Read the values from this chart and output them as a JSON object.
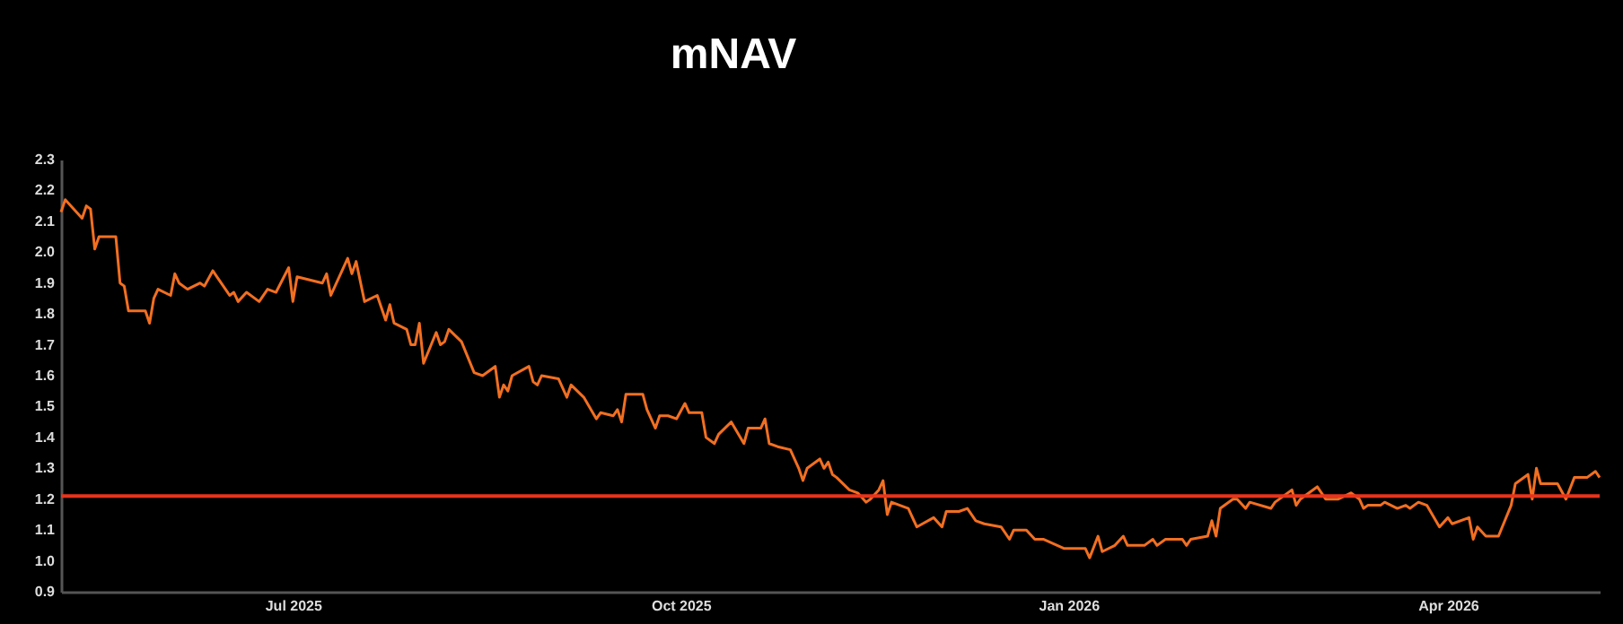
{
  "chart_data": {
    "type": "line",
    "title": "mNAV",
    "x": [
      "2025-05-07",
      "2025-05-08",
      "2025-05-12",
      "2025-05-13",
      "2025-05-14",
      "2025-05-15",
      "2025-05-16",
      "2025-05-20",
      "2025-05-21",
      "2025-05-22",
      "2025-05-23",
      "2025-05-27",
      "2025-05-28",
      "2025-05-29",
      "2025-05-30",
      "2025-06-02",
      "2025-06-03",
      "2025-06-04",
      "2025-06-06",
      "2025-06-09",
      "2025-06-10",
      "2025-06-12",
      "2025-06-13",
      "2025-06-16",
      "2025-06-17",
      "2025-06-18",
      "2025-06-20",
      "2025-06-23",
      "2025-06-25",
      "2025-06-27",
      "2025-06-30",
      "2025-07-01",
      "2025-07-02",
      "2025-07-08",
      "2025-07-09",
      "2025-07-10",
      "2025-07-14",
      "2025-07-15",
      "2025-07-16",
      "2025-07-18",
      "2025-07-21",
      "2025-07-23",
      "2025-07-24",
      "2025-07-25",
      "2025-07-28",
      "2025-07-29",
      "2025-07-30",
      "2025-07-31",
      "2025-08-01",
      "2025-08-04",
      "2025-08-05",
      "2025-08-06",
      "2025-08-07",
      "2025-08-10",
      "2025-08-13",
      "2025-08-15",
      "2025-08-18",
      "2025-08-19",
      "2025-08-20",
      "2025-08-21",
      "2025-08-22",
      "2025-08-26",
      "2025-08-27",
      "2025-08-28",
      "2025-08-29",
      "2025-09-02",
      "2025-09-04",
      "2025-09-05",
      "2025-09-08",
      "2025-09-11",
      "2025-09-12",
      "2025-09-15",
      "2025-09-16",
      "2025-09-17",
      "2025-09-18",
      "2025-09-22",
      "2025-09-23",
      "2025-09-25",
      "2025-09-26",
      "2025-09-28",
      "2025-09-30",
      "2025-10-02",
      "2025-10-03",
      "2025-10-06",
      "2025-10-07",
      "2025-10-09",
      "2025-10-10",
      "2025-10-13",
      "2025-10-16",
      "2025-10-17",
      "2025-10-20",
      "2025-10-21",
      "2025-10-22",
      "2025-10-24",
      "2025-10-27",
      "2025-10-29",
      "2025-10-30",
      "2025-10-31",
      "2025-11-03",
      "2025-11-04",
      "2025-11-05",
      "2025-11-06",
      "2025-11-07",
      "2025-11-10",
      "2025-11-12",
      "2025-11-14",
      "2025-11-15",
      "2025-11-17",
      "2025-11-18",
      "2025-11-19",
      "2025-11-20",
      "2025-11-24",
      "2025-11-26",
      "2025-11-30",
      "2025-12-02",
      "2025-12-03",
      "2025-12-06",
      "2025-12-08",
      "2025-12-10",
      "2025-12-12",
      "2025-12-16",
      "2025-12-18",
      "2025-12-19",
      "2025-12-22",
      "2025-12-24",
      "2025-12-26",
      "2025-12-31",
      "2026-01-05",
      "2026-01-06",
      "2026-01-08",
      "2026-01-09",
      "2026-01-12",
      "2026-01-14",
      "2026-01-15",
      "2026-01-19",
      "2026-01-21",
      "2026-01-22",
      "2026-01-24",
      "2026-01-28",
      "2026-01-29",
      "2026-01-30",
      "2026-02-03",
      "2026-02-04",
      "2026-02-05",
      "2026-02-06",
      "2026-02-09",
      "2026-02-10",
      "2026-02-12",
      "2026-02-13",
      "2026-02-18",
      "2026-02-19",
      "2026-02-23",
      "2026-02-24",
      "2026-02-25",
      "2026-03-01",
      "2026-03-03",
      "2026-03-06",
      "2026-03-09",
      "2026-03-11",
      "2026-03-12",
      "2026-03-13",
      "2026-03-16",
      "2026-03-17",
      "2026-03-20",
      "2026-03-22",
      "2026-03-23",
      "2026-03-25",
      "2026-03-27",
      "2026-03-30",
      "2026-04-01",
      "2026-04-02",
      "2026-04-06",
      "2026-04-07",
      "2026-04-08",
      "2026-04-10",
      "2026-04-13",
      "2026-04-16",
      "2026-04-17",
      "2026-04-20",
      "2026-04-21",
      "2026-04-22",
      "2026-04-23",
      "2026-04-27",
      "2026-04-29",
      "2026-05-01",
      "2026-05-04",
      "2026-05-06",
      "2026-05-07"
    ],
    "series": [
      {
        "color": "#f26f21",
        "values": [
          2.13,
          2.17,
          2.11,
          2.15,
          2.14,
          2.01,
          2.05,
          2.05,
          1.9,
          1.89,
          1.81,
          1.81,
          1.77,
          1.85,
          1.88,
          1.86,
          1.93,
          1.9,
          1.88,
          1.9,
          1.89,
          1.94,
          1.92,
          1.86,
          1.87,
          1.84,
          1.87,
          1.84,
          1.88,
          1.87,
          1.95,
          1.84,
          1.92,
          1.9,
          1.93,
          1.86,
          1.98,
          1.93,
          1.97,
          1.84,
          1.86,
          1.78,
          1.83,
          1.77,
          1.75,
          1.7,
          1.7,
          1.77,
          1.64,
          1.74,
          1.7,
          1.71,
          1.75,
          1.71,
          1.61,
          1.6,
          1.63,
          1.53,
          1.57,
          1.55,
          1.6,
          1.63,
          1.58,
          1.57,
          1.6,
          1.59,
          1.53,
          1.57,
          1.53,
          1.46,
          1.48,
          1.47,
          1.49,
          1.45,
          1.54,
          1.54,
          1.49,
          1.43,
          1.47,
          1.47,
          1.46,
          1.51,
          1.48,
          1.48,
          1.4,
          1.38,
          1.41,
          1.45,
          1.38,
          1.43,
          1.43,
          1.46,
          1.38,
          1.37,
          1.36,
          1.3,
          1.26,
          1.3,
          1.33,
          1.3,
          1.32,
          1.28,
          1.27,
          1.23,
          1.22,
          1.19,
          1.2,
          1.23,
          1.26,
          1.15,
          1.19,
          1.17,
          1.11,
          1.14,
          1.11,
          1.16,
          1.16,
          1.17,
          1.13,
          1.12,
          1.11,
          1.07,
          1.1,
          1.1,
          1.07,
          1.07,
          1.04,
          1.04,
          1.01,
          1.08,
          1.03,
          1.05,
          1.08,
          1.05,
          1.05,
          1.07,
          1.05,
          1.07,
          1.07,
          1.05,
          1.07,
          1.08,
          1.13,
          1.08,
          1.17,
          1.2,
          1.2,
          1.17,
          1.19,
          1.17,
          1.19,
          1.23,
          1.18,
          1.2,
          1.24,
          1.2,
          1.2,
          1.22,
          1.2,
          1.17,
          1.18,
          1.18,
          1.19,
          1.17,
          1.18,
          1.17,
          1.19,
          1.18,
          1.11,
          1.14,
          1.12,
          1.14,
          1.07,
          1.11,
          1.08,
          1.08,
          1.18,
          1.25,
          1.28,
          1.2,
          1.3,
          1.25,
          1.25,
          1.2,
          1.27,
          1.27,
          1.29,
          1.27
        ]
      }
    ],
    "xlim": [
      "2025-05-07",
      "2026-05-07"
    ],
    "xticks": [
      {
        "value": "2025-07-01",
        "label": "Jul 2025"
      },
      {
        "value": "2025-10-01",
        "label": "Oct 2025"
      },
      {
        "value": "2026-01-01",
        "label": "Jan 2026"
      },
      {
        "value": "2026-04-01",
        "label": "Apr 2026"
      }
    ],
    "ylim": [
      0.9,
      2.3
    ],
    "yticks": [
      0.9,
      {
        "value": 1,
        "label": "1.0"
      },
      1.1,
      1.2,
      1.3,
      1.4,
      1.5,
      1.6,
      1.7,
      1.8,
      1.9,
      {
        "value": 2,
        "label": "2.0"
      },
      2.1,
      2.2,
      2.3
    ],
    "ref_lines": [
      {
        "axis": "y",
        "value": 1.21,
        "color": "#e8341c"
      }
    ],
    "grid": false,
    "marker": "none",
    "line_style": "solid"
  }
}
